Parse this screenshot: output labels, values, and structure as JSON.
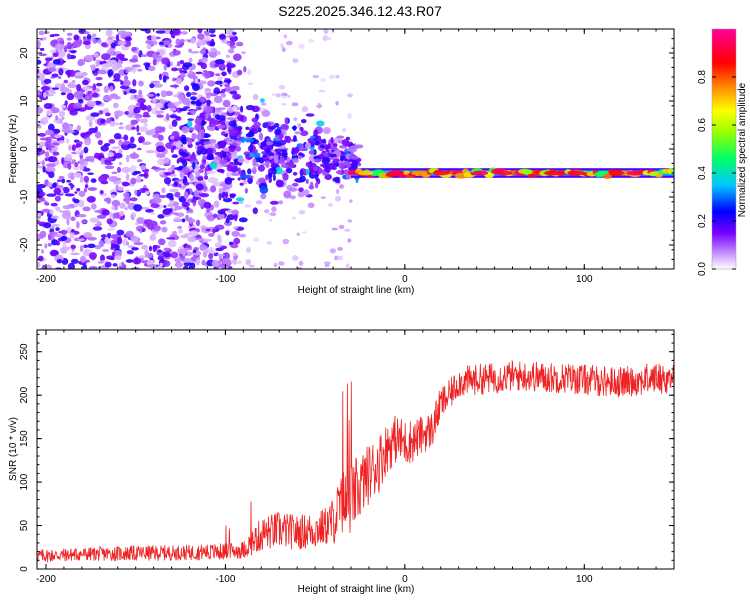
{
  "figure_title": "S225.2025.346.12.43.R07",
  "chart_data": [
    {
      "type": "heatmap",
      "title": "S225.2025.346.12.43.R07",
      "xlabel": "Height of straight line (km)",
      "ylabel": "Frequency (Hz)",
      "xlim": [
        -205,
        150
      ],
      "ylim": [
        -25,
        25
      ],
      "x_ticks": [
        -200,
        -100,
        0,
        100
      ],
      "y_ticks": [
        -20,
        -10,
        0,
        10,
        20
      ],
      "colorbar": {
        "label": "Normalized spectral amplitude",
        "range": [
          0,
          1
        ],
        "ticks": [
          0.0,
          0.2,
          0.4,
          0.6,
          0.8
        ],
        "tick_labels": [
          "0.0",
          "0.2",
          "0.4",
          "0.6",
          "0.8"
        ],
        "colormap": [
          "#ffffff",
          "#cc99ff",
          "#7700ff",
          "#0000ff",
          "#00c8ff",
          "#00ff66",
          "#99ff00",
          "#ffff00",
          "#ff8800",
          "#ff0000",
          "#ff0099"
        ]
      },
      "features": {
        "diffuse_noise_region_km": [
          -205,
          -100
        ],
        "transition_region_km": [
          -100,
          -30
        ],
        "stable_tone_region_km": [
          -30,
          150
        ],
        "stable_tone_frequency_hz": -5,
        "peak_amplitude": 0.95
      }
    },
    {
      "type": "line",
      "title": "",
      "xlabel": "Height of straight line (km)",
      "ylabel": "SNR (10 * v/v)",
      "xlim": [
        -205,
        150
      ],
      "ylim": [
        0,
        275
      ],
      "x_ticks": [
        -200,
        -100,
        0,
        100
      ],
      "y_ticks": [
        0,
        50,
        100,
        150,
        200,
        250
      ],
      "series": [
        {
          "name": "SNR",
          "color": "#ee2222",
          "x": [
            -205,
            -180,
            -150,
            -120,
            -100,
            -90,
            -80,
            -70,
            -60,
            -50,
            -45,
            -40,
            -35,
            -30,
            -25,
            -20,
            -15,
            -10,
            -5,
            0,
            5,
            10,
            15,
            20,
            25,
            30,
            40,
            50,
            60,
            70,
            80,
            90,
            100,
            110,
            120,
            130,
            140,
            150
          ],
          "mean": [
            15,
            17,
            18,
            19,
            20,
            22,
            40,
            45,
            42,
            45,
            48,
            55,
            75,
            80,
            95,
            110,
            120,
            140,
            150,
            145,
            148,
            155,
            160,
            190,
            200,
            215,
            218,
            220,
            222,
            222,
            220,
            220,
            218,
            216,
            215,
            217,
            220,
            218
          ],
          "noise": [
            8,
            8,
            9,
            9,
            10,
            10,
            20,
            22,
            20,
            22,
            22,
            28,
            40,
            42,
            38,
            35,
            35,
            30,
            28,
            28,
            25,
            22,
            22,
            20,
            18,
            18,
            18,
            18,
            18,
            18,
            18,
            18,
            18,
            18,
            18,
            18,
            18,
            18
          ]
        }
      ]
    }
  ]
}
